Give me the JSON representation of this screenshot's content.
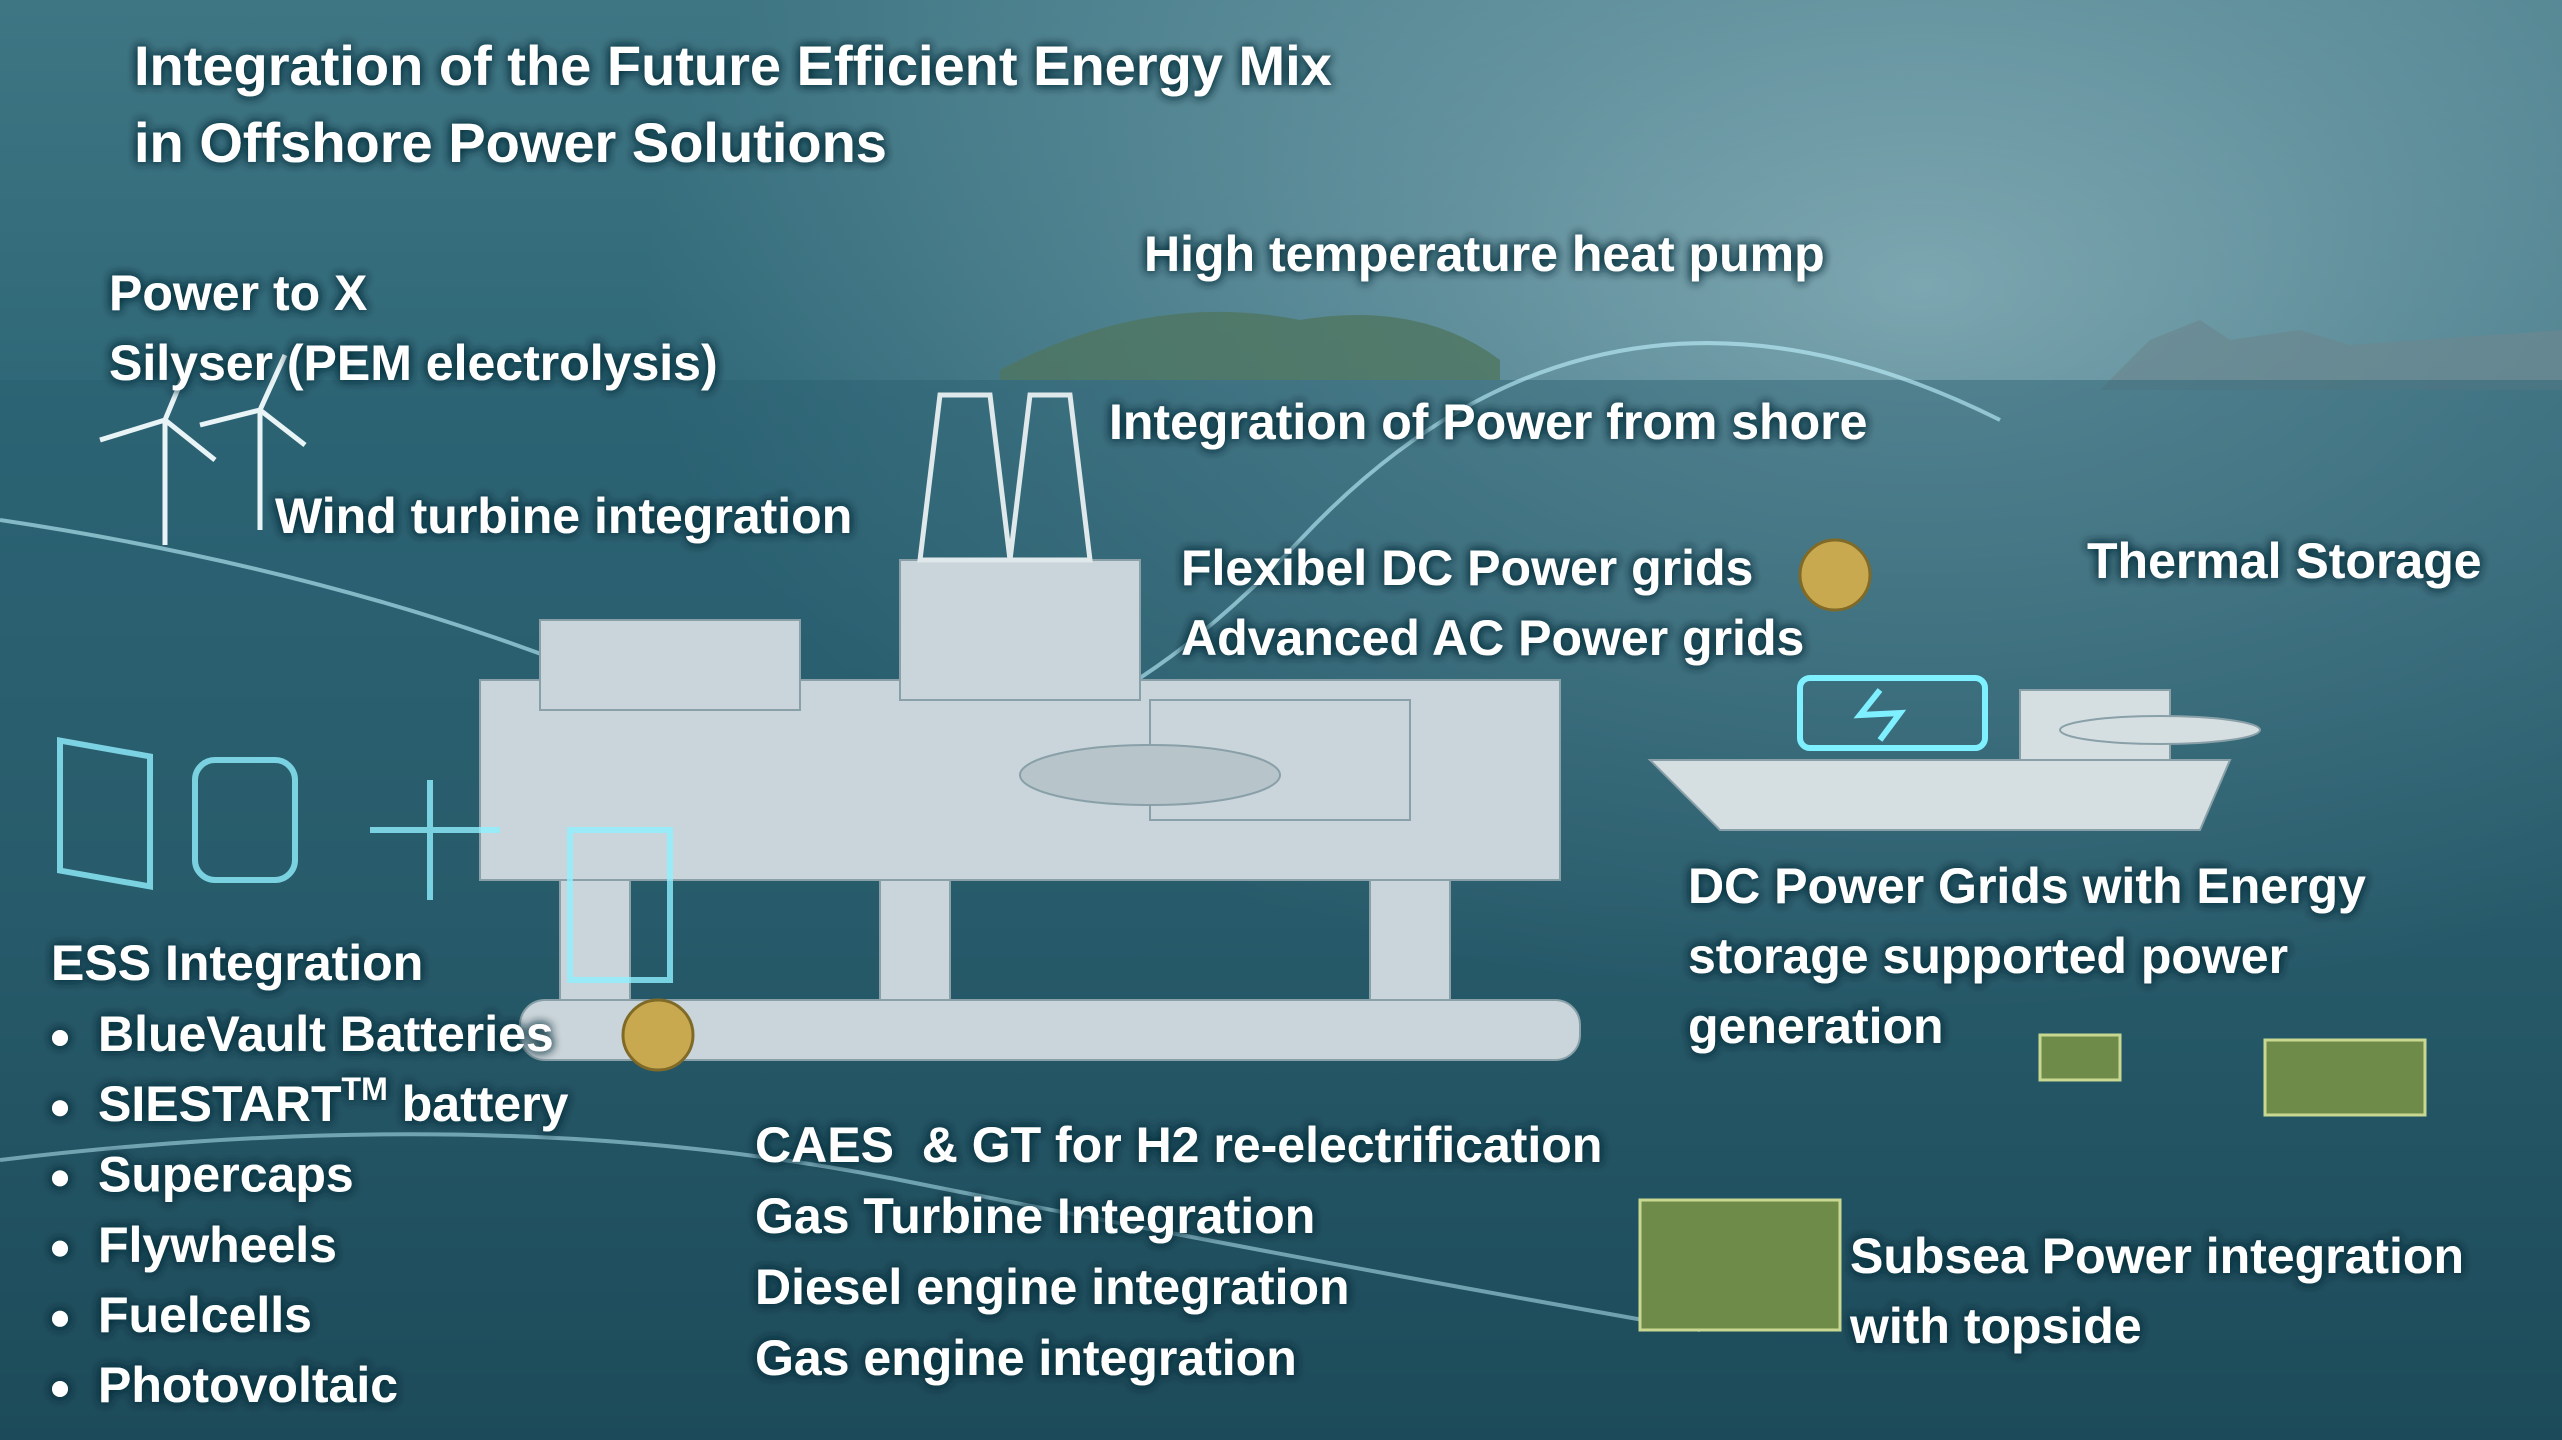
{
  "title": [
    "Integration of the Future Efficient Energy Mix",
    "in Offshore Power Solutions"
  ],
  "callouts": [
    {
      "lines": [
        "Power to X",
        "Silyser (PEM electrolysis)"
      ]
    },
    {
      "lines": [
        "High temperature heat pump"
      ]
    },
    {
      "lines": [
        "Integration of Power from shore"
      ]
    },
    {
      "lines": [
        "Wind turbine integration"
      ]
    },
    {
      "lines": [
        "Flexibel DC Power grids",
        "Advanced AC Power grids"
      ]
    },
    {
      "lines": [
        "Thermal Storage"
      ]
    },
    {
      "lines": [
        "DC Power Grids with Energy",
        "storage supported power",
        "generation"
      ]
    },
    {
      "lines": [
        "CAES  & GT for H2 re-electrification",
        "Gas Turbine Integration",
        "Diesel engine integration",
        "Gas engine integration"
      ]
    },
    {
      "lines": [
        "Subsea Power integration",
        "with topside"
      ]
    }
  ],
  "ess": {
    "heading": "ESS Integration",
    "items": [
      "BlueVault Batteries",
      {
        "text": "SIESTART",
        "superscript": "TM",
        "after": "battery"
      },
      "Supercaps",
      "Flywheels",
      "Fuelcells",
      "Photovoltaic"
    ]
  }
}
